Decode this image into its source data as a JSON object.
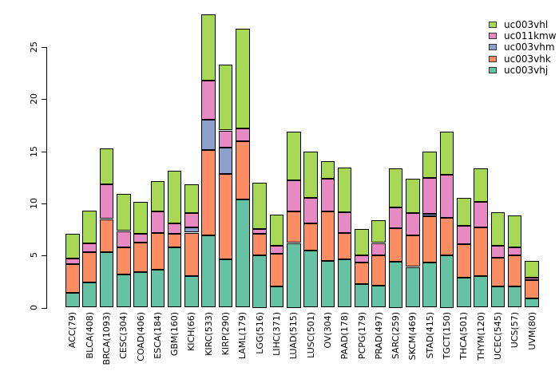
{
  "figure": {
    "background": "#ffffff",
    "text_color": "#000000"
  },
  "chart_data": {
    "type": "bar",
    "stacked": true,
    "title": "",
    "xlabel": "",
    "ylabel": "",
    "grid": false,
    "ylim": [
      0,
      28.5
    ],
    "y_ticks": [
      0,
      5,
      10,
      15,
      20,
      25
    ],
    "axis_color": "#000000",
    "bar_border_color": "#000000",
    "categories": [
      "ACC(79)",
      "BLCA(408)",
      "BRCA(1093)",
      "CESC(304)",
      "COAD(406)",
      "ESCA(184)",
      "GBM(160)",
      "KICH(66)",
      "KIRC(533)",
      "KIRP(290)",
      "LAML(179)",
      "LGG(516)",
      "LIHC(371)",
      "LUAD(515)",
      "LUSC(501)",
      "OV(304)",
      "PAAD(178)",
      "PCPG(179)",
      "PRAD(497)",
      "SARC(259)",
      "SKCM(469)",
      "STAD(415)",
      "TGCT(150)",
      "THCA(501)",
      "THYM(120)",
      "UCEC(545)",
      "UCS(57)",
      "UVM(80)"
    ],
    "stack_order_bottom_to_top": [
      "uc003vhj",
      "uc003vhk",
      "uc003vhm",
      "uc011kmw",
      "uc003vhl"
    ],
    "series": [
      {
        "name": "uc003vhj",
        "color": "#66C2A5",
        "values": [
          1.4,
          2.4,
          5.3,
          3.2,
          3.4,
          3.65,
          5.8,
          3.0,
          6.9,
          4.65,
          10.4,
          5.05,
          2.0,
          6.2,
          5.45,
          4.5,
          4.6,
          2.25,
          2.1,
          4.4,
          3.9,
          4.3,
          5.05,
          2.9,
          3.0,
          2.05,
          2.05,
          0.85
        ]
      },
      {
        "name": "uc003vhk",
        "color": "#FC8D62",
        "values": [
          2.8,
          2.9,
          3.2,
          2.6,
          2.85,
          3.5,
          1.3,
          4.2,
          8.25,
          8.2,
          5.55,
          2.05,
          3.2,
          3.05,
          2.65,
          4.7,
          2.55,
          2.1,
          2.95,
          3.25,
          3.05,
          4.45,
          3.6,
          3.2,
          4.7,
          2.75,
          2.95,
          1.8
        ]
      },
      {
        "name": "uc003vhm",
        "color": "#8DA0CB",
        "values": [
          0,
          0,
          0,
          0,
          0,
          0,
          0,
          0.5,
          2.85,
          2.5,
          0,
          0,
          0,
          0,
          0,
          0,
          0,
          0,
          0,
          0,
          0,
          0.25,
          0,
          0,
          0,
          0,
          0,
          0
        ]
      },
      {
        "name": "uc011kmw",
        "color": "#E78AC3",
        "values": [
          0.5,
          0.9,
          3.3,
          1.55,
          0.85,
          2.1,
          0.95,
          1.4,
          3.75,
          1.65,
          1.25,
          0.45,
          0.75,
          2.95,
          2.4,
          3.2,
          2.0,
          0.65,
          1.15,
          2.0,
          2.15,
          3.45,
          4.1,
          1.75,
          2.45,
          1.15,
          0.75,
          0.2
        ]
      },
      {
        "name": "uc003vhl",
        "color": "#A6D854",
        "values": [
          2.4,
          3.1,
          3.5,
          3.55,
          3.05,
          2.9,
          5.1,
          2.7,
          6.4,
          6.35,
          9.6,
          4.4,
          3.0,
          4.7,
          4.45,
          1.65,
          4.3,
          2.55,
          2.2,
          3.75,
          3.25,
          2.5,
          4.15,
          2.7,
          3.2,
          3.2,
          3.1,
          1.6
        ]
      }
    ],
    "legend": {
      "position": "top-right",
      "entries_top_to_bottom": [
        "uc003vhl",
        "uc011kmw",
        "uc003vhm",
        "uc003vhk",
        "uc003vhj"
      ]
    }
  }
}
